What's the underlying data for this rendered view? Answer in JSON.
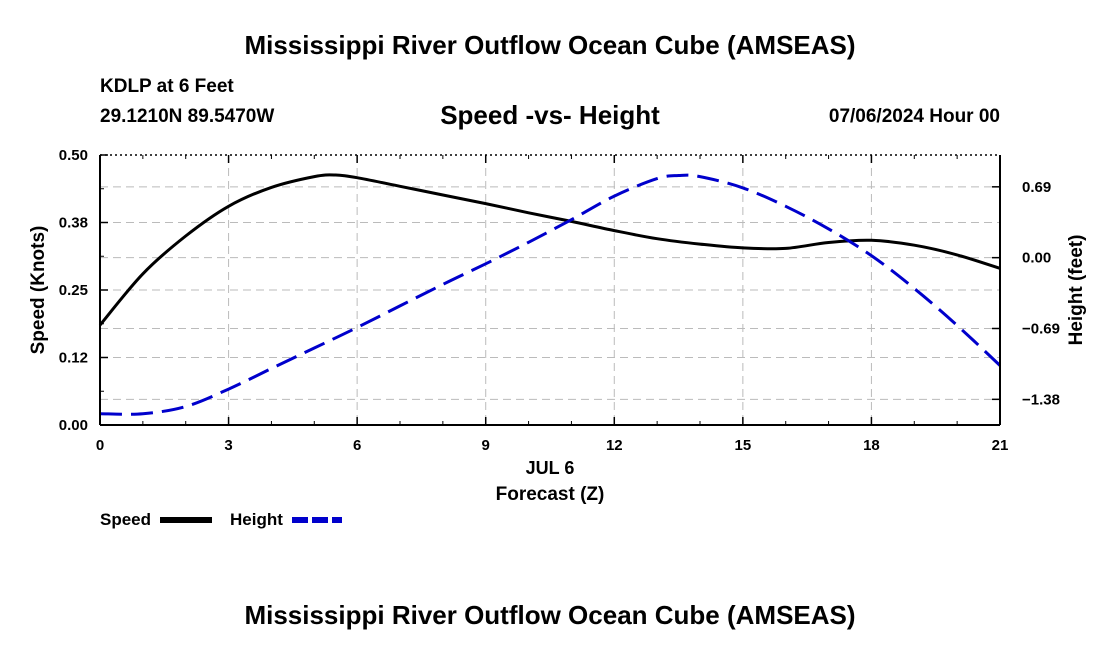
{
  "page": {
    "title": "Mississippi River Outflow Ocean Cube (AMSEAS)",
    "footer_title": "Mississippi River Outflow Ocean Cube (AMSEAS)",
    "station": "KDLP at 6 Feet",
    "coordinates": "29.1210N  89.5470W",
    "datetime": "07/06/2024 Hour 00"
  },
  "chart_data": {
    "type": "line",
    "title": "Speed -vs- Height",
    "xlabel": "Forecast (Z)",
    "xsublabel": "JUL 6",
    "ylabel": "Speed (Knots)",
    "y2label": "Height (feet)",
    "xlim": [
      0,
      21
    ],
    "ylim": [
      0,
      0.5
    ],
    "y2lim": [
      -1.63,
      1.0
    ],
    "x_ticks": [
      0,
      3,
      6,
      9,
      12,
      15,
      18,
      21
    ],
    "x_tick_labels": [
      "0",
      "3",
      "6",
      "9",
      "12",
      "15",
      "18",
      "21"
    ],
    "y_ticks": [
      0,
      0.125,
      0.25,
      0.375,
      0.5
    ],
    "y_tick_labels": [
      "0.00",
      "0.12",
      "0.25",
      "0.38",
      "0.50"
    ],
    "y2_ticks": [
      0.69,
      0,
      -0.69,
      -1.38
    ],
    "y2_tick_labels": [
      "0.69",
      "0.00",
      "−0.69",
      "−1.38"
    ],
    "grid": true,
    "series": [
      {
        "name": "Speed",
        "axis": "left",
        "color": "#000000",
        "style": "solid",
        "x": [
          0,
          1,
          2,
          3,
          4,
          5,
          5.5,
          6,
          7,
          8,
          9,
          10,
          11,
          12,
          13,
          14,
          15,
          16,
          17,
          18,
          19,
          20,
          21
        ],
        "values": [
          0.185,
          0.28,
          0.35,
          0.405,
          0.44,
          0.46,
          0.463,
          0.458,
          0.442,
          0.426,
          0.41,
          0.393,
          0.377,
          0.36,
          0.345,
          0.335,
          0.328,
          0.327,
          0.338,
          0.342,
          0.333,
          0.315,
          0.29
        ]
      },
      {
        "name": "Height",
        "axis": "right",
        "color": "#0000cc",
        "style": "dashed",
        "x": [
          0,
          1,
          2,
          3,
          4,
          5,
          6,
          7,
          8,
          9,
          10,
          11,
          12,
          13,
          13.5,
          14,
          15,
          16,
          17,
          18,
          19,
          20,
          21
        ],
        "values": [
          -1.52,
          -1.52,
          -1.45,
          -1.28,
          -1.08,
          -0.88,
          -0.68,
          -0.47,
          -0.26,
          -0.06,
          0.15,
          0.37,
          0.6,
          0.77,
          0.8,
          0.79,
          0.68,
          0.5,
          0.28,
          0.02,
          -0.3,
          -0.66,
          -1.05
        ]
      }
    ],
    "legend": [
      {
        "label": "Speed",
        "color": "#000000",
        "style": "solid"
      },
      {
        "label": "Height",
        "color": "#0000cc",
        "style": "dashed"
      }
    ],
    "legend_position": "bottom-left"
  }
}
